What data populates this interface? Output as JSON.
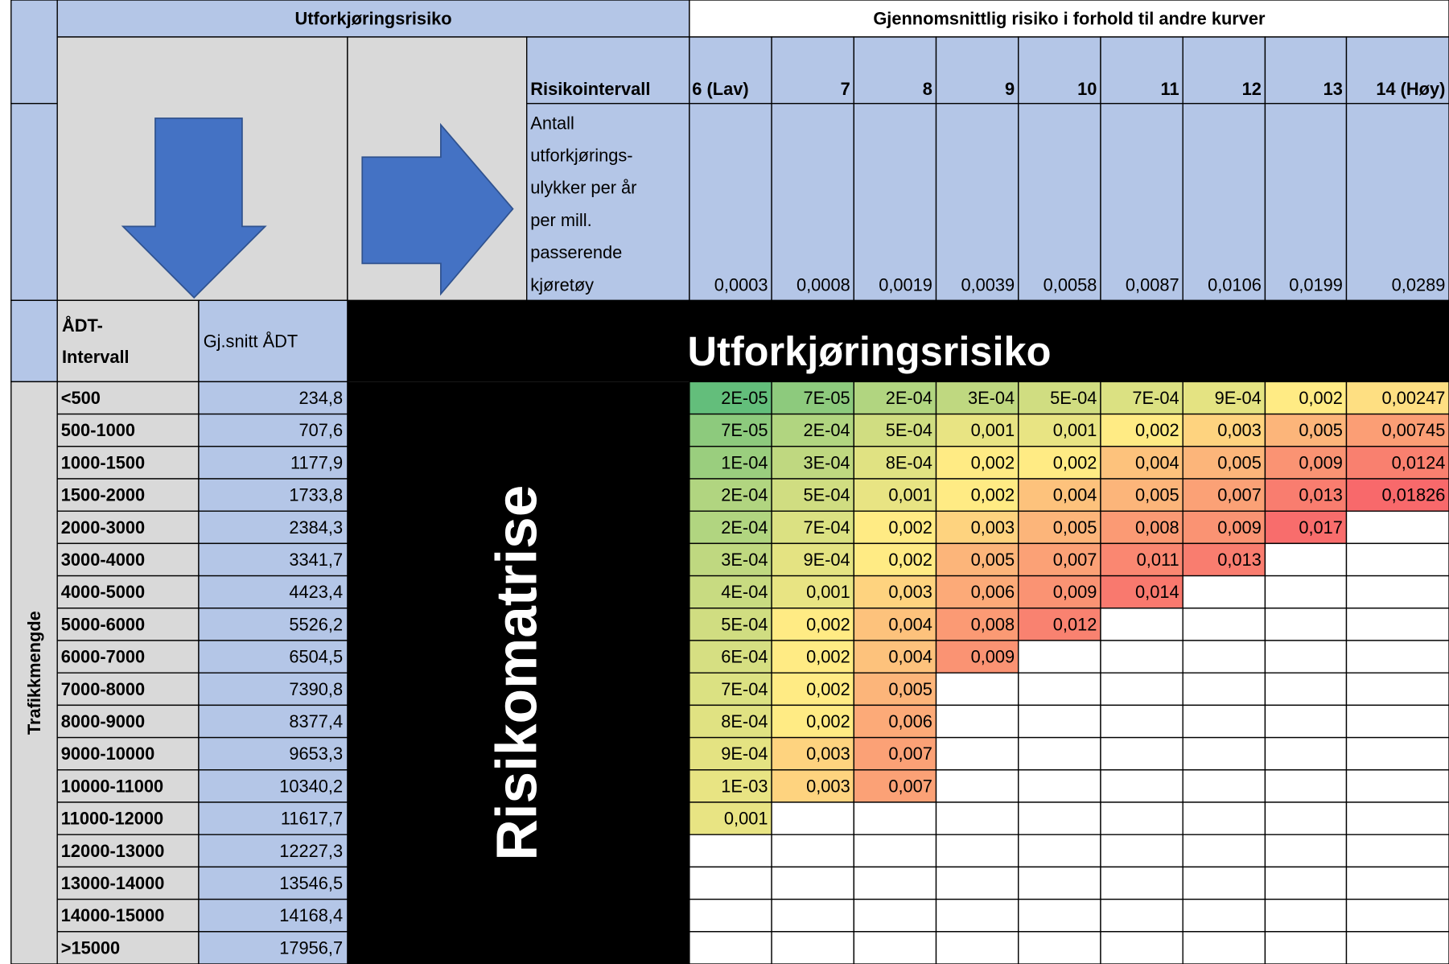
{
  "header": {
    "left_title": "Utforkjøringsrisiko",
    "right_title": "Gjennomsnittlig risiko i forhold til andre kurver",
    "risk_interval_label": "Risikointervall",
    "rate_label_lines": [
      "Antall",
      "utforkjørings-",
      "ulykker per år",
      "per mill.",
      "passerende",
      "kjøretøy"
    ],
    "risk_intervals": [
      "6 (Lav)",
      "7",
      "8",
      "9",
      "10",
      "11",
      "12",
      "13",
      "14 (Høy)"
    ],
    "rates": [
      "0,0003",
      "0,0008",
      "0,0019",
      "0,0039",
      "0,0058",
      "0,0087",
      "0,0106",
      "0,0199",
      "0,0289"
    ]
  },
  "banner": "Utforkjøringsrisiko",
  "side_banner": "Risikomatrise",
  "row_group_label": "Trafikkmengde",
  "columns": {
    "interval_lines": [
      "ÅDT-",
      "Intervall"
    ],
    "average": "Gj.snitt ÅDT"
  },
  "color_scale": [
    "#63BE7B",
    "#FFEB84",
    "#F8696B"
  ],
  "table": {
    "rows": [
      {
        "interval": "<500",
        "average": "234,8",
        "cells": [
          "2E-05",
          "7E-05",
          "2E-04",
          "3E-04",
          "5E-04",
          "7E-04",
          "9E-04",
          "0,002",
          "0,00247"
        ]
      },
      {
        "interval": "500-1000",
        "average": "707,6",
        "cells": [
          "7E-05",
          "2E-04",
          "5E-04",
          "0,001",
          "0,001",
          "0,002",
          "0,003",
          "0,005",
          "0,00745"
        ]
      },
      {
        "interval": "1000-1500",
        "average": "1177,9",
        "cells": [
          "1E-04",
          "3E-04",
          "8E-04",
          "0,002",
          "0,002",
          "0,004",
          "0,005",
          "0,009",
          "0,0124"
        ]
      },
      {
        "interval": "1500-2000",
        "average": "1733,8",
        "cells": [
          "2E-04",
          "5E-04",
          "0,001",
          "0,002",
          "0,004",
          "0,005",
          "0,007",
          "0,013",
          "0,01826"
        ]
      },
      {
        "interval": "2000-3000",
        "average": "2384,3",
        "cells": [
          "2E-04",
          "7E-04",
          "0,002",
          "0,003",
          "0,005",
          "0,008",
          "0,009",
          "0,017",
          null
        ]
      },
      {
        "interval": "3000-4000",
        "average": "3341,7",
        "cells": [
          "3E-04",
          "9E-04",
          "0,002",
          "0,005",
          "0,007",
          "0,011",
          "0,013",
          null,
          null
        ]
      },
      {
        "interval": "4000-5000",
        "average": "4423,4",
        "cells": [
          "4E-04",
          "0,001",
          "0,003",
          "0,006",
          "0,009",
          "0,014",
          null,
          null,
          null
        ]
      },
      {
        "interval": "5000-6000",
        "average": "5526,2",
        "cells": [
          "5E-04",
          "0,002",
          "0,004",
          "0,008",
          "0,012",
          null,
          null,
          null,
          null
        ]
      },
      {
        "interval": "6000-7000",
        "average": "6504,5",
        "cells": [
          "6E-04",
          "0,002",
          "0,004",
          "0,009",
          null,
          null,
          null,
          null,
          null
        ]
      },
      {
        "interval": "7000-8000",
        "average": "7390,8",
        "cells": [
          "7E-04",
          "0,002",
          "0,005",
          null,
          null,
          null,
          null,
          null,
          null
        ]
      },
      {
        "interval": "8000-9000",
        "average": "8377,4",
        "cells": [
          "8E-04",
          "0,002",
          "0,006",
          null,
          null,
          null,
          null,
          null,
          null
        ]
      },
      {
        "interval": "9000-10000",
        "average": "9653,3",
        "cells": [
          "9E-04",
          "0,003",
          "0,007",
          null,
          null,
          null,
          null,
          null,
          null
        ]
      },
      {
        "interval": "10000-11000",
        "average": "10340,2",
        "cells": [
          "1E-03",
          "0,003",
          "0,007",
          null,
          null,
          null,
          null,
          null,
          null
        ]
      },
      {
        "interval": "11000-12000",
        "average": "11617,7",
        "cells": [
          "0,001",
          null,
          null,
          null,
          null,
          null,
          null,
          null,
          null
        ]
      },
      {
        "interval": "12000-13000",
        "average": "12227,3",
        "cells": [
          null,
          null,
          null,
          null,
          null,
          null,
          null,
          null,
          null
        ]
      },
      {
        "interval": "13000-14000",
        "average": "13546,5",
        "cells": [
          null,
          null,
          null,
          null,
          null,
          null,
          null,
          null,
          null
        ]
      },
      {
        "interval": "14000-15000",
        "average": "14168,4",
        "cells": [
          null,
          null,
          null,
          null,
          null,
          null,
          null,
          null,
          null
        ]
      },
      {
        "interval": ">15000",
        "average": "17956,7",
        "cells": [
          null,
          null,
          null,
          null,
          null,
          null,
          null,
          null,
          null
        ]
      }
    ]
  }
}
